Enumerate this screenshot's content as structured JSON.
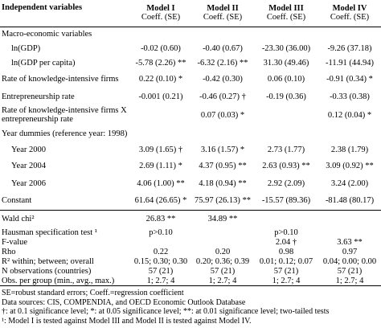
{
  "header": {
    "label": "Independent variables",
    "models": [
      {
        "name": "Model I",
        "sub": "Coeff. (SE)"
      },
      {
        "name": "Model II",
        "sub": "Coeff. (SE)"
      },
      {
        "name": "Model III",
        "sub": "Coeff. (SE)"
      },
      {
        "name": "Model IV",
        "sub": "Coeff. (SE)"
      }
    ]
  },
  "rows": [
    {
      "label": "Macro-economic variables"
    },
    {
      "label": "ln(GDP)",
      "cells": [
        "-0.02 (0.60)",
        "-0.40 (0.67)",
        "-23.30 (36.00)",
        "-9.26 (37.18)"
      ]
    },
    {
      "label": "ln(GDP per capita)",
      "cells": [
        "-5.78 (2.26) **",
        "-6.32 (2.16) **",
        "31.30 (49.46)",
        "-11.91 (44.94)"
      ]
    },
    {
      "label": "Rate of knowledge-intensive firms",
      "cells": [
        "0.22 (0.10) *",
        "-0.42 (0.30)",
        "0.06 (0.10)",
        "-0.91 (0.34) *"
      ]
    },
    {
      "label": "Entrepreneurship rate",
      "cells": [
        "-0.001 (0.21)",
        "-0.46 (0.27) †",
        "-0.19 (0.36)",
        "-0.33 (0.38)"
      ]
    },
    {
      "label": "Rate of knowledge-intensive firms X entrepreneurship rate",
      "cells": [
        null,
        "0.07 (0.03) *",
        null,
        "0.12 (0.04) *"
      ]
    },
    {
      "label": "Year dummies (reference year: 1998)"
    },
    {
      "label": "Year 2000",
      "cells": [
        "3.09 (1.65) †",
        "3.16 (1.57) *",
        "2.73 (1.77)",
        "2.38 (1.79)"
      ]
    },
    {
      "label": "Year 2004",
      "cells": [
        "2.69 (1.11) *",
        "4.37 (0.95) **",
        "2.63 (0.93) **",
        "3.09 (0.92) **"
      ]
    },
    {
      "label": "Year 2006",
      "cells": [
        "4.06 (1.00) **",
        "4.18 (0.94) **",
        "2.92 (2.09)",
        "3.24 (2.00)"
      ]
    },
    {
      "label": "Constant",
      "cells": [
        "61.64 (26.65) *",
        "75.97 (26.13) **",
        "-15.57 (89.36)",
        "-81.48 (80.17)"
      ]
    }
  ],
  "stats": [
    {
      "label": "Wald chi²",
      "cells": [
        "26.83 **",
        "34.89 **",
        null,
        null
      ]
    },
    {
      "label": "Hausman specification test ¹",
      "cells": [
        "p>0.10",
        null,
        "p>0.10",
        null
      ]
    },
    {
      "label": "F-value",
      "cells": [
        null,
        null,
        "2.04 †",
        "3.63 **"
      ]
    },
    {
      "label": "Rho",
      "cells": [
        "0.22",
        "0.20",
        "0.98",
        "0.97"
      ]
    },
    {
      "label": "R² within; between; overall",
      "cells": [
        "0.15; 0.30; 0.30",
        "0.20; 0.36; 0.39",
        "0.01; 0.12; 0.07",
        "0.04; 0.00; 0.00"
      ]
    },
    {
      "label": "N observations (countries)",
      "cells": [
        "57 (21)",
        "57 (21)",
        "57 (21)",
        "57 (21)"
      ]
    },
    {
      "label": "Obs. per group (min., avg., max.)",
      "cells": [
        "1; 2.7; 4",
        "1; 2.7; 4",
        "1; 2.7; 4",
        "1; 2.7; 4"
      ]
    }
  ],
  "footnotes": [
    "SE=robust standard errors; Coeff.=regression coefficient",
    "Data sources: CIS, COMPENDIA, and OECD Economic Outlook Database",
    "†: at 0.1 significance level; *: at 0.05 significance level; **: at 0.01 significance level; two-tailed tests",
    "¹: Model I is tested against Model III and Model II is tested against Model IV."
  ]
}
